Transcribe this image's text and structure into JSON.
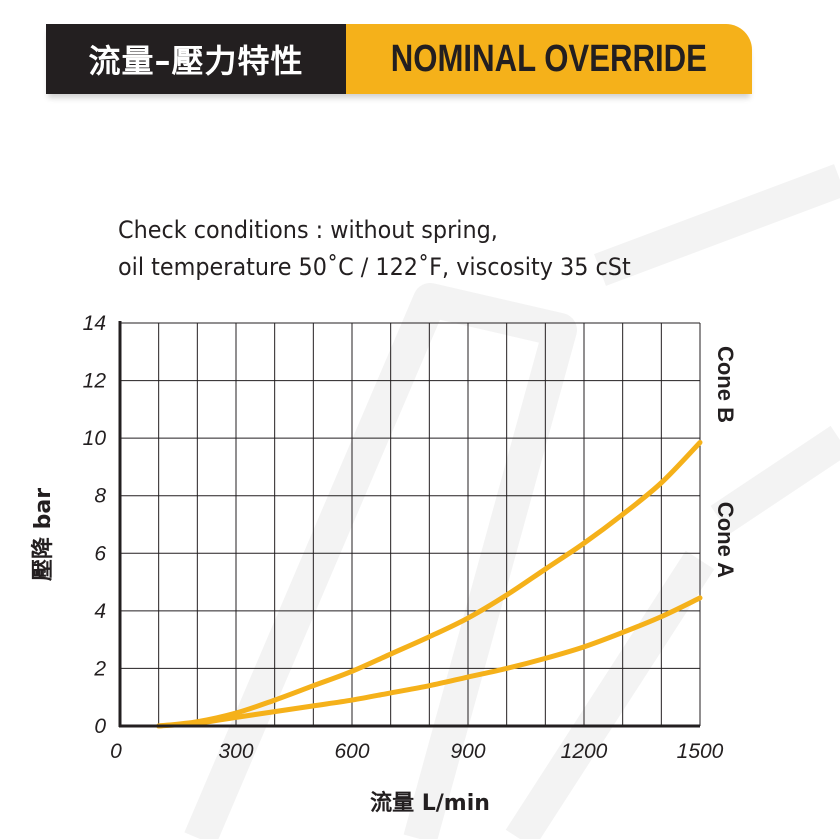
{
  "header": {
    "title_cn": "流量–壓力特性",
    "title_en": "NOMINAL OVERRIDE"
  },
  "conditions": {
    "line1": "Check conditions : without spring,",
    "line2": "oil temperature 50˚C / 122˚F, viscosity 35 cSt"
  },
  "colors": {
    "curve": "#f5b11a",
    "dark": "#231f20",
    "accent": "#f5b11a"
  },
  "chart_data": {
    "type": "line",
    "xlabel": "流量 L/min",
    "ylabel": "壓降 bar",
    "xlim": [
      0,
      1500
    ],
    "ylim": [
      0,
      14
    ],
    "xticks": [
      0,
      300,
      600,
      900,
      1200,
      1500
    ],
    "yticks": [
      0,
      2,
      4,
      6,
      8,
      10,
      12,
      14
    ],
    "grid": true,
    "series": [
      {
        "name": "Cone B",
        "x": [
          100,
          200,
          300,
          400,
          500,
          600,
          700,
          800,
          900,
          1000,
          1100,
          1200,
          1300,
          1400,
          1500
        ],
        "y": [
          0.0,
          0.15,
          0.45,
          0.9,
          1.4,
          1.9,
          2.5,
          3.1,
          3.75,
          4.55,
          5.45,
          6.35,
          7.35,
          8.45,
          9.85
        ]
      },
      {
        "name": "Cone A",
        "x": [
          100,
          200,
          300,
          400,
          500,
          600,
          700,
          800,
          900,
          1000,
          1100,
          1200,
          1300,
          1400,
          1500
        ],
        "y": [
          0.0,
          0.1,
          0.3,
          0.5,
          0.7,
          0.9,
          1.15,
          1.4,
          1.7,
          2.0,
          2.35,
          2.75,
          3.25,
          3.8,
          4.45
        ]
      }
    ]
  }
}
